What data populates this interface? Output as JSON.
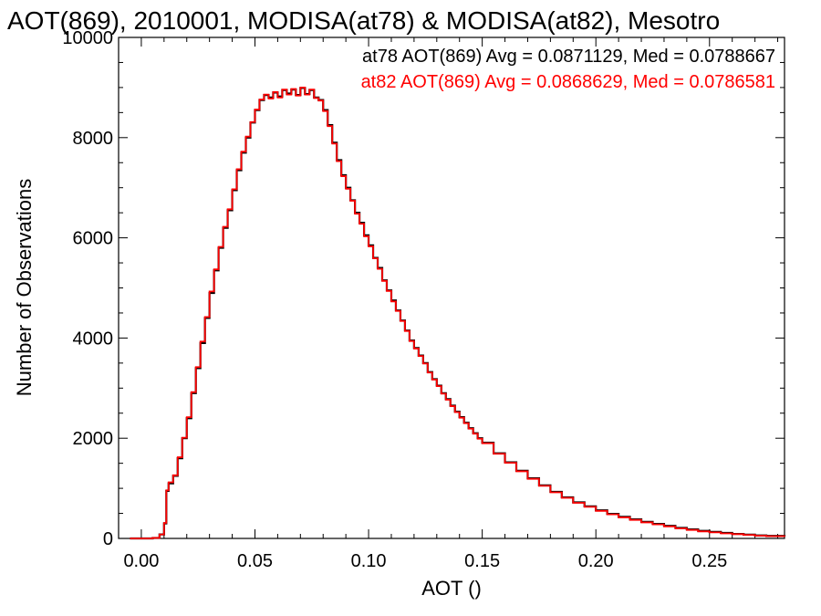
{
  "chart_data": {
    "type": "line",
    "step": true,
    "title": "AOT(869), 2010001, MODISA(at78) & MODISA(at82), Mesotro",
    "xlabel": "AOT ()",
    "ylabel": "Number of Observations",
    "xlim": [
      -0.01,
      0.283
    ],
    "ylim": [
      0,
      10000
    ],
    "xticks": [
      0.0,
      0.05,
      0.1,
      0.15,
      0.2,
      0.25
    ],
    "xtick_labels": [
      "0.00",
      "0.05",
      "0.10",
      "0.15",
      "0.20",
      "0.25"
    ],
    "yticks": [
      0,
      2000,
      4000,
      6000,
      8000,
      10000
    ],
    "ytick_labels": [
      "0",
      "2000",
      "4000",
      "6000",
      "8000",
      "10000"
    ],
    "grid": false,
    "annotations": [
      {
        "text": "at78 AOT(869) Avg = 0.0871129, Med = 0.0788667",
        "color": "#000000"
      },
      {
        "text": "at82 AOT(869) Avg = 0.0868629, Med = 0.0786581",
        "color": "#ff0000"
      }
    ],
    "series": [
      {
        "color": "#000000",
        "x": [
          -0.005,
          0.0,
          0.005,
          0.008,
          0.01,
          0.011,
          0.012,
          0.014,
          0.016,
          0.018,
          0.02,
          0.022,
          0.024,
          0.026,
          0.028,
          0.03,
          0.032,
          0.034,
          0.036,
          0.038,
          0.04,
          0.042,
          0.044,
          0.046,
          0.048,
          0.05,
          0.052,
          0.054,
          0.056,
          0.058,
          0.06,
          0.062,
          0.064,
          0.066,
          0.068,
          0.07,
          0.072,
          0.074,
          0.076,
          0.078,
          0.08,
          0.082,
          0.084,
          0.086,
          0.088,
          0.09,
          0.092,
          0.094,
          0.096,
          0.098,
          0.1,
          0.102,
          0.104,
          0.106,
          0.108,
          0.11,
          0.112,
          0.114,
          0.116,
          0.118,
          0.12,
          0.122,
          0.124,
          0.126,
          0.128,
          0.13,
          0.132,
          0.134,
          0.136,
          0.138,
          0.14,
          0.142,
          0.144,
          0.146,
          0.148,
          0.15,
          0.155,
          0.16,
          0.165,
          0.17,
          0.175,
          0.18,
          0.185,
          0.19,
          0.195,
          0.2,
          0.205,
          0.21,
          0.215,
          0.22,
          0.225,
          0.23,
          0.235,
          0.24,
          0.245,
          0.25,
          0.255,
          0.26,
          0.265,
          0.27,
          0.275,
          0.283
        ],
        "y": [
          0,
          0,
          10,
          80,
          300,
          950,
          1100,
          1250,
          1600,
          2000,
          2400,
          2900,
          3400,
          3900,
          4400,
          4900,
          5350,
          5800,
          6200,
          6550,
          6950,
          7350,
          7700,
          8000,
          8300,
          8550,
          8750,
          8850,
          8800,
          8900,
          8820,
          8950,
          8880,
          8960,
          8850,
          8990,
          8870,
          8950,
          8800,
          8750,
          8550,
          8250,
          7900,
          7550,
          7250,
          7000,
          6750,
          6500,
          6300,
          6050,
          5850,
          5600,
          5400,
          5150,
          4950,
          4750,
          4550,
          4350,
          4150,
          3950,
          3800,
          3650,
          3500,
          3320,
          3180,
          3050,
          2900,
          2780,
          2650,
          2530,
          2420,
          2310,
          2200,
          2100,
          2000,
          1910,
          1700,
          1520,
          1350,
          1200,
          1060,
          930,
          820,
          720,
          640,
          560,
          490,
          430,
          380,
          330,
          290,
          250,
          210,
          180,
          150,
          130,
          110,
          90,
          75,
          60,
          50,
          40
        ]
      },
      {
        "color": "#ff0000",
        "x": [
          -0.005,
          0.0,
          0.005,
          0.008,
          0.01,
          0.011,
          0.012,
          0.014,
          0.016,
          0.018,
          0.02,
          0.022,
          0.024,
          0.026,
          0.028,
          0.03,
          0.032,
          0.034,
          0.036,
          0.038,
          0.04,
          0.042,
          0.044,
          0.046,
          0.048,
          0.05,
          0.052,
          0.054,
          0.056,
          0.058,
          0.06,
          0.062,
          0.064,
          0.066,
          0.068,
          0.07,
          0.072,
          0.074,
          0.076,
          0.078,
          0.08,
          0.082,
          0.084,
          0.086,
          0.088,
          0.09,
          0.092,
          0.094,
          0.096,
          0.098,
          0.1,
          0.102,
          0.104,
          0.106,
          0.108,
          0.11,
          0.112,
          0.114,
          0.116,
          0.118,
          0.12,
          0.122,
          0.124,
          0.126,
          0.128,
          0.13,
          0.132,
          0.134,
          0.136,
          0.138,
          0.14,
          0.142,
          0.144,
          0.146,
          0.148,
          0.15,
          0.155,
          0.16,
          0.165,
          0.17,
          0.175,
          0.18,
          0.185,
          0.19,
          0.195,
          0.2,
          0.205,
          0.21,
          0.215,
          0.22,
          0.225,
          0.23,
          0.235,
          0.24,
          0.245,
          0.25,
          0.255,
          0.26,
          0.265,
          0.27,
          0.275,
          0.283
        ],
        "y": [
          0,
          0,
          10,
          80,
          310,
          960,
          1120,
          1260,
          1620,
          2010,
          2420,
          2920,
          3420,
          3930,
          4420,
          4930,
          5370,
          5820,
          6220,
          6570,
          6970,
          7370,
          7720,
          8020,
          8310,
          8560,
          8760,
          8860,
          8780,
          8910,
          8800,
          8960,
          8860,
          8970,
          8840,
          9000,
          8860,
          8960,
          8790,
          8740,
          8530,
          8230,
          7880,
          7530,
          7230,
          6980,
          6740,
          6480,
          6280,
          6030,
          5830,
          5590,
          5380,
          5140,
          4940,
          4730,
          4540,
          4340,
          4140,
          3940,
          3790,
          3640,
          3490,
          3310,
          3170,
          3040,
          2890,
          2770,
          2640,
          2520,
          2410,
          2300,
          2190,
          2090,
          1990,
          1900,
          1690,
          1510,
          1340,
          1190,
          1050,
          920,
          810,
          710,
          630,
          550,
          480,
          420,
          370,
          320,
          280,
          240,
          200,
          170,
          140,
          120,
          100,
          85,
          70,
          55,
          45,
          35
        ]
      }
    ]
  }
}
